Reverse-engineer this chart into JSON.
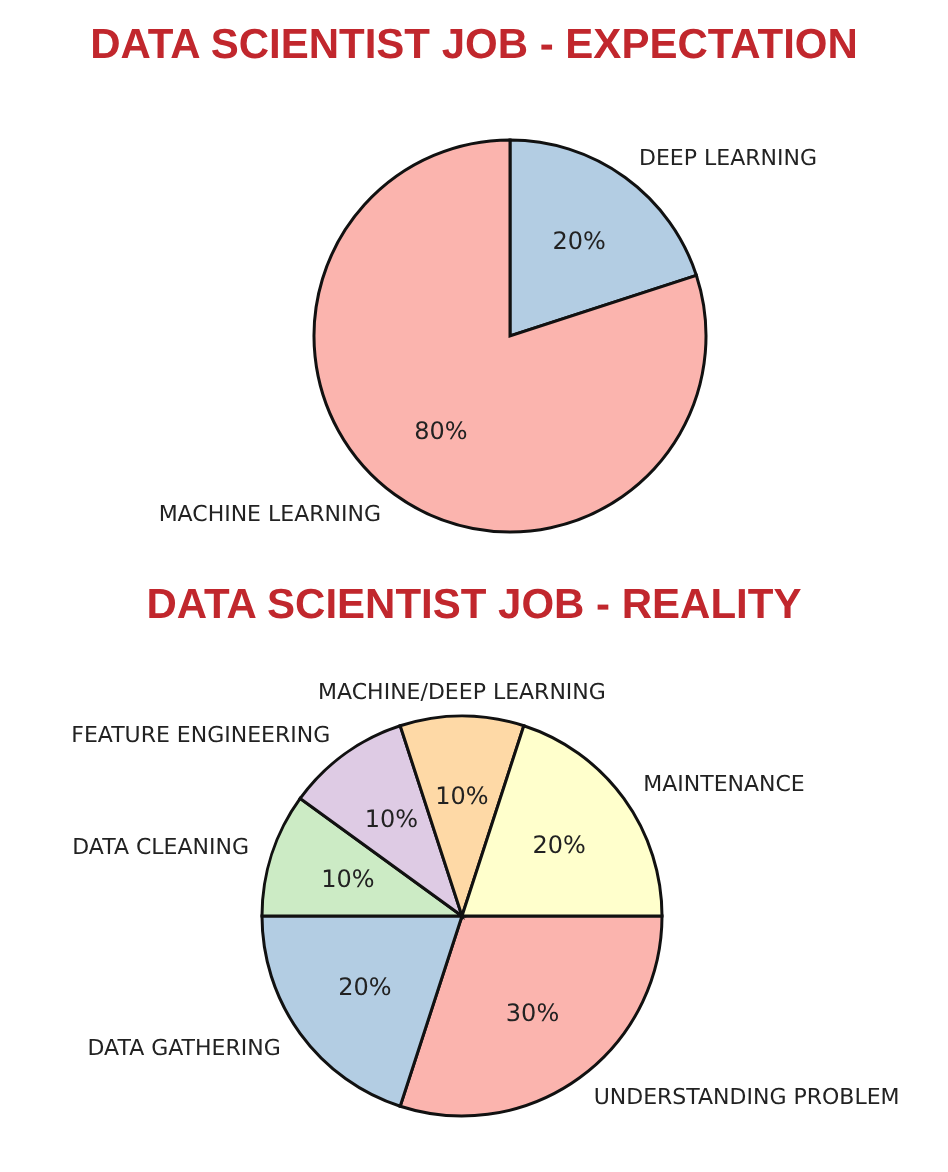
{
  "chart_data": [
    {
      "type": "pie",
      "title": "DATA SCIENTIST JOB - EXPECTATION",
      "categories": [
        "DEEP LEARNING",
        "MACHINE LEARNING"
      ],
      "values": [
        20,
        80
      ],
      "colors": [
        "#b3cde3",
        "#fbb4ae"
      ],
      "value_labels": [
        "20%",
        "80%"
      ],
      "legend": false
    },
    {
      "type": "pie",
      "title": "DATA SCIENTIST JOB - REALITY",
      "categories": [
        "UNDERSTANDING PROBLEM",
        "DATA GATHERING",
        "DATA CLEANING",
        "FEATURE ENGINEERING",
        "MACHINE/DEEP LEARNING",
        "MAINTENANCE"
      ],
      "values": [
        30,
        20,
        10,
        10,
        10,
        20
      ],
      "colors": [
        "#fbb4ae",
        "#b3cde3",
        "#ccebc5",
        "#decbe4",
        "#fed9a6",
        "#ffffcc"
      ],
      "value_labels": [
        "30%",
        "20%",
        "10%",
        "10%",
        "10%",
        "20%"
      ],
      "legend": false
    }
  ]
}
